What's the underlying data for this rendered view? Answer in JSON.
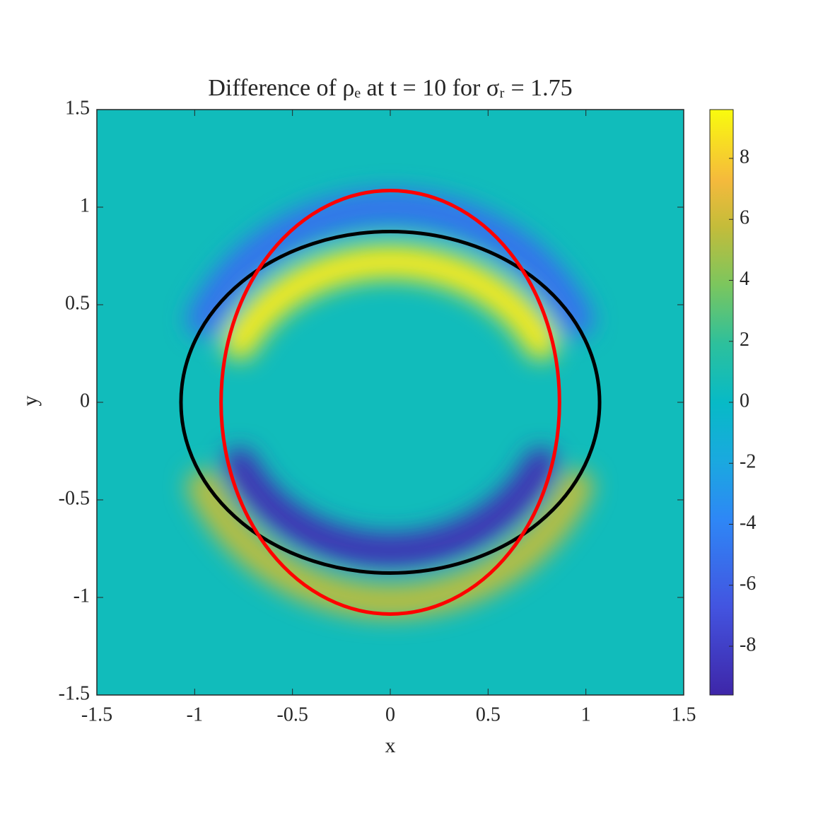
{
  "chart_data": {
    "type": "heatmap",
    "title": "Difference of ρₑ at t = 10 for σᵣ = 1.75",
    "x_label": "x",
    "y_label": "y",
    "xlim": [
      -1.5,
      1.5
    ],
    "ylim": [
      -1.5,
      1.5
    ],
    "xticks": [
      -1.5,
      -1,
      -0.5,
      0,
      0.5,
      1,
      1.5
    ],
    "yticks": [
      -1.5,
      -1,
      -0.5,
      0,
      0.5,
      1,
      1.5
    ],
    "background_value": 0.5,
    "bands": [
      {
        "value": 9,
        "rx": 0.85,
        "ry": 0.72
      },
      {
        "value": -9,
        "rx": 0.85,
        "ry": -0.76
      },
      {
        "value": -5,
        "rx": 1.05,
        "ry": 1.0
      },
      {
        "value": 5.5,
        "rx": 1.05,
        "ry": -1.02
      }
    ],
    "curves": [
      {
        "color": "#000000",
        "rx": 1.07,
        "ry": 0.875
      },
      {
        "color": "#ff0000",
        "rx": 0.865,
        "ry": 1.085
      }
    ],
    "clim": [
      -9.6,
      9.6
    ],
    "colorbar_ticks": [
      -8,
      -6,
      -4,
      -2,
      0,
      2,
      4,
      6,
      8
    ]
  }
}
